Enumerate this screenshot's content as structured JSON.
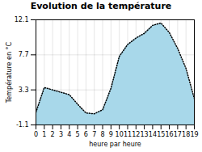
{
  "chart_data": {
    "type": "area",
    "title": "Evolution de la température",
    "xlabel": "heure par heure",
    "ylabel": "Température en °C",
    "x": [
      0,
      1,
      2,
      3,
      4,
      5,
      6,
      7,
      8,
      9,
      10,
      11,
      12,
      13,
      14,
      15,
      16,
      17,
      18,
      19
    ],
    "values": [
      0.5,
      3.6,
      3.3,
      3.0,
      2.7,
      1.5,
      0.4,
      0.3,
      0.8,
      3.5,
      7.5,
      9.0,
      9.8,
      10.4,
      11.4,
      11.7,
      10.5,
      8.5,
      6.0,
      2.2
    ],
    "color": "#a8d8ea",
    "line_style": "dotted",
    "xlim": [
      0,
      19
    ],
    "xticks": [
      0,
      1,
      2,
      3,
      4,
      5,
      6,
      7,
      8,
      9,
      10,
      11,
      12,
      13,
      14,
      15,
      16,
      17,
      18,
      19
    ],
    "ylim": [
      -1.1,
      12.1
    ],
    "yticks": [
      -1.1,
      3.3,
      7.7,
      12.1
    ],
    "grid": true
  }
}
